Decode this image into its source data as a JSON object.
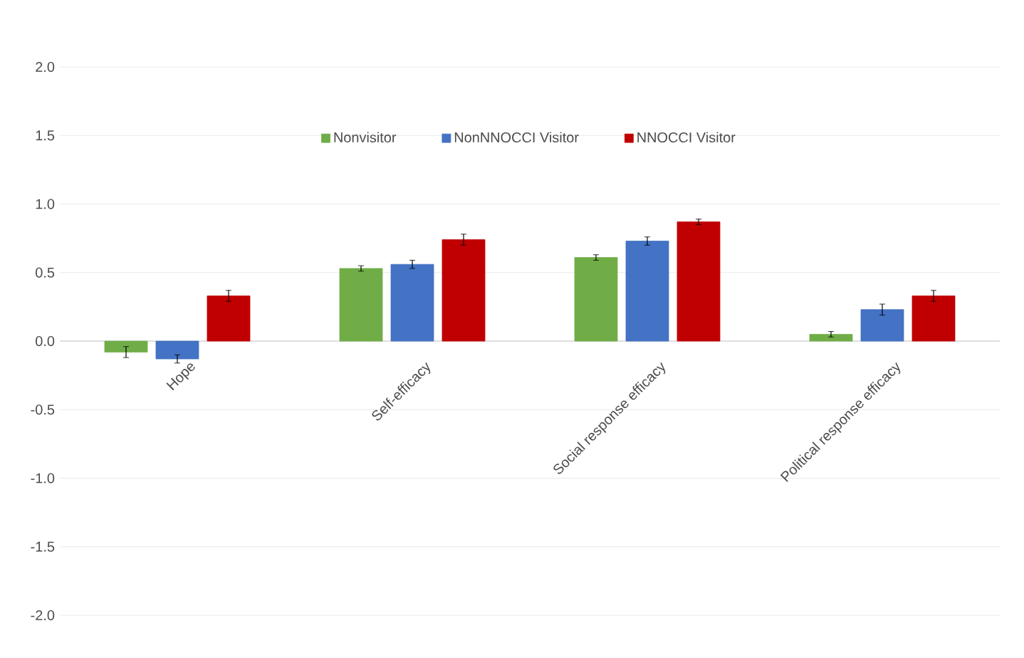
{
  "chart_data": {
    "type": "bar",
    "categories": [
      "Hope",
      "Self-efficacy",
      "Social response efficacy",
      "Political response efficacy"
    ],
    "series": [
      {
        "name": "Nonvisitor",
        "color": "#70ad47",
        "values": [
          -0.08,
          0.53,
          0.61,
          0.05
        ],
        "errors": [
          0.04,
          0.02,
          0.02,
          0.02
        ]
      },
      {
        "name": "NonNNOCCI Visitor",
        "color": "#4472c4",
        "values": [
          -0.13,
          0.56,
          0.73,
          0.23
        ],
        "errors": [
          0.03,
          0.03,
          0.03,
          0.04
        ]
      },
      {
        "name": "NNOCCI Visitor",
        "color": "#c00000",
        "values": [
          0.33,
          0.74,
          0.87,
          0.33
        ],
        "errors": [
          0.04,
          0.04,
          0.02,
          0.04
        ]
      }
    ],
    "ylim": [
      -2.0,
      2.0
    ],
    "yticks": [
      {
        "value": 2,
        "label": "2.0"
      },
      {
        "value": 1.5,
        "label": "1.5"
      },
      {
        "value": 1,
        "label": "1.0"
      },
      {
        "value": 0.5,
        "label": "0.5"
      },
      {
        "value": 0,
        "label": "0.0"
      },
      {
        "value": -0.5,
        "label": "-0.5"
      },
      {
        "value": -1,
        "label": "-1.0"
      },
      {
        "value": -1.5,
        "label": "-1.5"
      },
      {
        "value": -2,
        "label": "-2.0"
      }
    ],
    "grid": "y",
    "legend": "top"
  }
}
